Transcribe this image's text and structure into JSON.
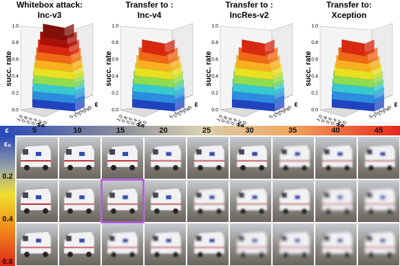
{
  "panels": [
    {
      "title_line1": "Whitebox attack:",
      "title_line2": "Inc-v3"
    },
    {
      "title_line1": "Transfer to :",
      "title_line2": "Inc-v4"
    },
    {
      "title_line1": "Transfer to :",
      "title_line2": "IncRes-v2"
    },
    {
      "title_line1": "Transfer to:",
      "title_line2": "Xception"
    }
  ],
  "axes": {
    "z_label": "succ. rate",
    "z_ticks": [
      "0.0",
      "0.2",
      "0.4",
      "0.6",
      "0.8",
      "1.0"
    ],
    "eps0_label": "ε₀",
    "eps0_ticks": [
      "1.0",
      "0.8",
      "0.6",
      "0.4",
      "0.2",
      "0.0"
    ],
    "eps_label": "ε",
    "eps_ticks": [
      "5",
      "15",
      "25",
      "35",
      "45"
    ]
  },
  "colorbar_eps": {
    "label": "ε",
    "ticks": [
      "5",
      "10",
      "15",
      "20",
      "25",
      "30",
      "35",
      "40",
      "45"
    ]
  },
  "colorbar_eps0": {
    "label": "ε₀",
    "ticks": [
      "0.2",
      "0.4",
      "0.6"
    ]
  }
}
